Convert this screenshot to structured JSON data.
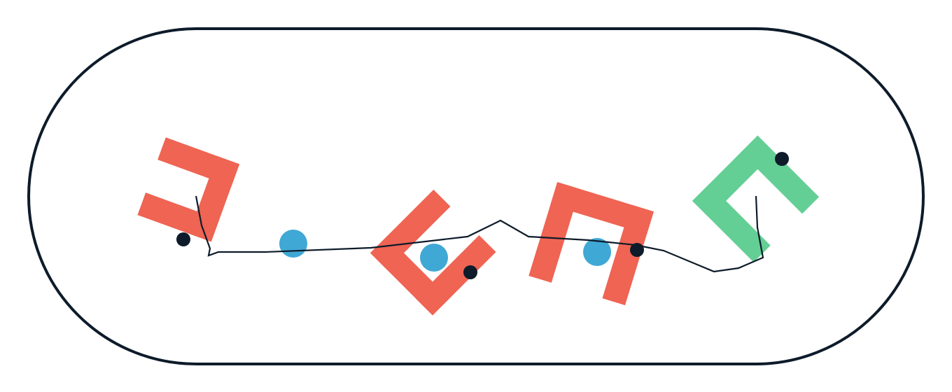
{
  "colors": {
    "background": "#ffffff",
    "boundary": "#0d1b2a",
    "shape_inactive": "#ef6453",
    "shape_active": "#63cf95",
    "target_dot": "#3fa8d5",
    "anchor_dot": "#0d1b2a",
    "path": "#0d1b2a"
  },
  "icons": {
    "board": "stadium-boundary-icon",
    "shape": "bracket-shape-icon",
    "target": "blue-circle-icon",
    "anchor": "black-dot-icon"
  },
  "scene": {
    "bracket_count": 4,
    "active_bracket_index": 3,
    "blue_target_count": 3,
    "black_dot_count": 4
  }
}
